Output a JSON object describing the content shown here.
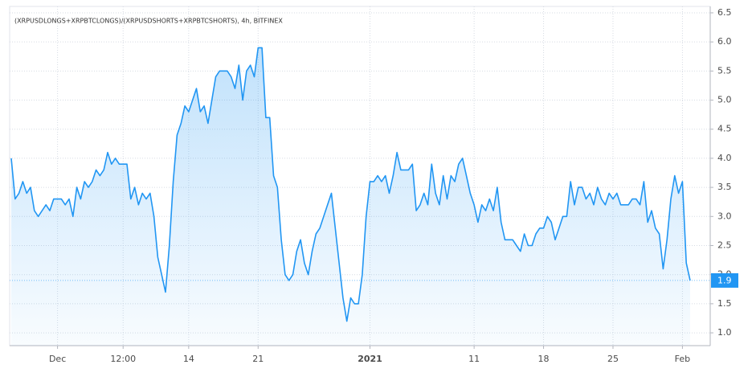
{
  "chart_data": {
    "type": "line",
    "title": "(XRPUSDLONGS+XRPBTCLONGS)/(XRPUSDSHORTS+XRPBTCSHORTS), 4h, BITFINEX",
    "color": "#2196f3",
    "values": [
      4.0,
      3.3,
      3.4,
      3.6,
      3.4,
      3.5,
      3.1,
      3.0,
      3.1,
      3.2,
      3.1,
      3.3,
      3.3,
      3.3,
      3.2,
      3.3,
      3.0,
      3.5,
      3.3,
      3.6,
      3.5,
      3.6,
      3.8,
      3.7,
      3.8,
      4.1,
      3.9,
      4.0,
      3.9,
      3.9,
      3.9,
      3.3,
      3.5,
      3.2,
      3.4,
      3.3,
      3.4,
      3.0,
      2.3,
      2.0,
      1.7,
      2.5,
      3.6,
      4.4,
      4.6,
      4.9,
      4.8,
      5.0,
      5.2,
      4.8,
      4.9,
      4.6,
      5.0,
      5.4,
      5.5,
      5.5,
      5.5,
      5.4,
      5.2,
      5.6,
      5.0,
      5.5,
      5.6,
      5.4,
      5.9,
      5.9,
      4.7,
      4.7,
      3.7,
      3.5,
      2.6,
      2.0,
      1.9,
      2.0,
      2.4,
      2.6,
      2.2,
      2.0,
      2.4,
      2.7,
      2.8,
      3.0,
      3.2,
      3.4,
      2.8,
      2.2,
      1.6,
      1.2,
      1.6,
      1.5,
      1.5,
      2.0,
      3.0,
      3.6,
      3.6,
      3.7,
      3.6,
      3.7,
      3.4,
      3.7,
      4.1,
      3.8,
      3.8,
      3.8,
      3.9,
      3.1,
      3.2,
      3.4,
      3.2,
      3.9,
      3.4,
      3.2,
      3.7,
      3.3,
      3.7,
      3.6,
      3.9,
      4.0,
      3.7,
      3.4,
      3.2,
      2.9,
      3.2,
      3.1,
      3.3,
      3.1,
      3.5,
      2.9,
      2.6,
      2.6,
      2.6,
      2.5,
      2.4,
      2.7,
      2.5,
      2.5,
      2.7,
      2.8,
      2.8,
      3.0,
      2.9,
      2.6,
      2.8,
      3.0,
      3.0,
      3.6,
      3.2,
      3.5,
      3.5,
      3.3,
      3.4,
      3.2,
      3.5,
      3.3,
      3.2,
      3.4,
      3.3,
      3.4,
      3.2,
      3.2,
      3.2,
      3.3,
      3.3,
      3.2,
      3.6,
      2.9,
      3.1,
      2.8,
      2.7,
      2.1,
      2.6,
      3.3,
      3.7,
      3.4,
      3.6,
      2.2,
      1.9
    ],
    "last_label": {
      "value": 1.9,
      "label": "1.9"
    },
    "xlim": [
      0,
      176
    ],
    "xticks": [
      {
        "value": 12,
        "label": "Dec"
      },
      {
        "value": 29,
        "label": "12:00"
      },
      {
        "value": 46,
        "label": "14"
      },
      {
        "value": 64,
        "label": "21"
      },
      {
        "value": 93,
        "label": "2021"
      },
      {
        "value": 120,
        "label": "11"
      },
      {
        "value": 138,
        "label": "18"
      },
      {
        "value": 156,
        "label": "25"
      },
      {
        "value": 174,
        "label": "Feb"
      }
    ],
    "ylim": [
      0.78,
      6.61
    ],
    "yticks": [
      {
        "value": 1,
        "label": "1.0"
      },
      1.5,
      {
        "value": 2,
        "label": "2.0"
      },
      2.5,
      {
        "value": 3,
        "label": "3.0"
      },
      3.5,
      {
        "value": 4,
        "label": "4.0"
      },
      4.5,
      {
        "value": 5,
        "label": "5.0"
      },
      5.5,
      {
        "value": 6,
        "label": "6.0"
      },
      6.5
    ],
    "grid": true
  }
}
